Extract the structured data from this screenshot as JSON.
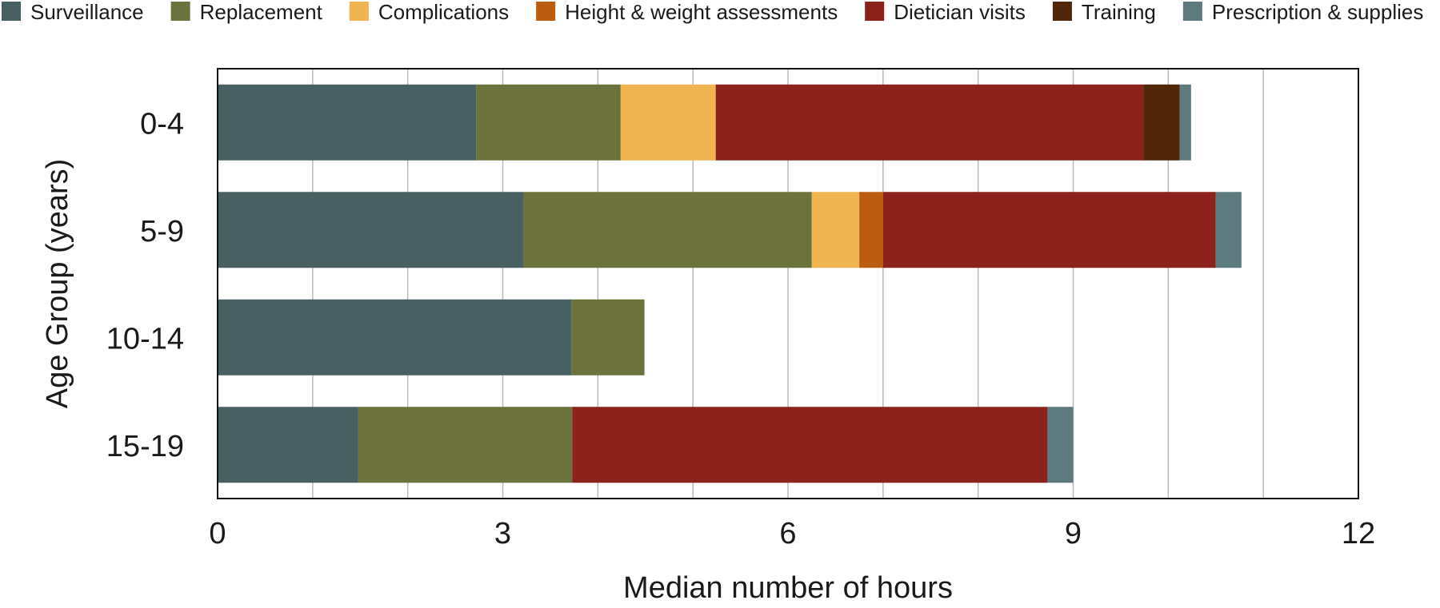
{
  "chart_data": {
    "type": "bar",
    "orientation": "horizontal",
    "stacked": true,
    "title": "",
    "xlabel": "Median number of hours",
    "ylabel": "Age Group (years)",
    "xlim": [
      0,
      12
    ],
    "x_ticks": [
      "0",
      "3",
      "6",
      "9",
      "12"
    ],
    "grid": "vertical",
    "legend_position": "top",
    "categories": [
      "0-4",
      "5-9",
      "10-14",
      "15-19"
    ],
    "series": [
      {
        "name": "Surveillance",
        "color": "#486062",
        "values": [
          2.72,
          3.22,
          3.72,
          1.48
        ]
      },
      {
        "name": "Replacement",
        "color": "#6c723b",
        "values": [
          1.52,
          3.03,
          0.77,
          2.25
        ]
      },
      {
        "name": "Complications",
        "color": "#f0b450",
        "values": [
          1.0,
          0.5,
          0,
          0
        ]
      },
      {
        "name": "Height & weight assessments",
        "color": "#bb5c10",
        "values": [
          0,
          0.25,
          0,
          0
        ]
      },
      {
        "name": "Dietician visits",
        "color": "#8b231c",
        "values": [
          4.5,
          3.5,
          0,
          5.0
        ]
      },
      {
        "name": "Training",
        "color": "#4f2708",
        "values": [
          0.38,
          0,
          0,
          0
        ]
      },
      {
        "name": "Prescription & supplies",
        "color": "#5d7a7e",
        "values": [
          0.12,
          0.27,
          0,
          0.27
        ]
      }
    ]
  }
}
